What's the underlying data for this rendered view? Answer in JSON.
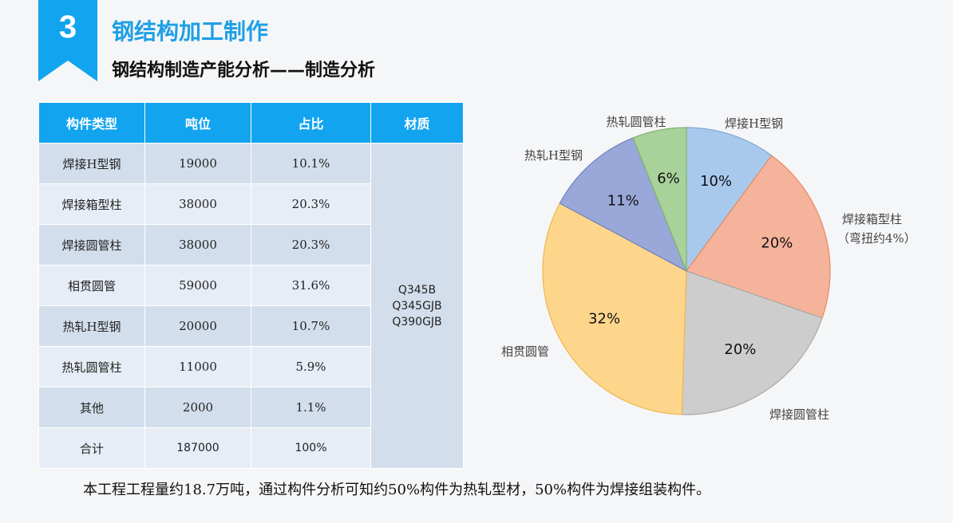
{
  "header": {
    "section_number": "3",
    "title": "钢结构加工制作",
    "subtitle": "钢结构制造产能分析——制造分析"
  },
  "table": {
    "headers": [
      "构件类型",
      "吨位",
      "占比",
      "材质"
    ],
    "rows": [
      {
        "type": "焊接H型钢",
        "tonnage": "19000",
        "share": "10.1%"
      },
      {
        "type": "焊接箱型柱",
        "tonnage": "38000",
        "share": "20.3%"
      },
      {
        "type": "焊接圆管柱",
        "tonnage": "38000",
        "share": "20.3%"
      },
      {
        "type": "相贯圆管",
        "tonnage": "59000",
        "share": "31.6%"
      },
      {
        "type": "热轧H型钢",
        "tonnage": "20000",
        "share": "10.7%"
      },
      {
        "type": "热轧圆管柱",
        "tonnage": "11000",
        "share": "5.9%"
      },
      {
        "type": "其他",
        "tonnage": "2000",
        "share": "1.1%"
      }
    ],
    "total": {
      "type": "合计",
      "tonnage": "187000",
      "share": "100%"
    },
    "materials": [
      "Q345B",
      "Q345GJB",
      "Q390GJB"
    ]
  },
  "chart_data": {
    "type": "pie",
    "start": "12 o'clock, clockwise",
    "slices": [
      {
        "label": "焊接H型钢",
        "value": 10,
        "display": "10%",
        "color": "#a9c9ec",
        "stroke": "#7fa9d8"
      },
      {
        "label": "焊接箱型柱",
        "sublabel": "（弯扭约4%）",
        "value": 20,
        "display": "20%",
        "color": "#f6b39b",
        "stroke": "#e8895f"
      },
      {
        "label": "焊接圆管柱",
        "value": 20,
        "display": "20%",
        "color": "#cdcdcd",
        "stroke": "#a9a9a9"
      },
      {
        "label": "相贯圆管",
        "value": 32,
        "display": "32%",
        "color": "#fdd68c",
        "stroke": "#f1b64a"
      },
      {
        "label": "热轧H型钢",
        "value": 11,
        "display": "11%",
        "color": "#99a8d8",
        "stroke": "#6e80c2"
      },
      {
        "label": "热轧圆管柱",
        "value": 6,
        "display": "6%",
        "color": "#a9d29a",
        "stroke": "#7fb36d"
      }
    ]
  },
  "footnote": "本工程工程量约18.7万吨，通过构件分析可知约50%构件为热轧型材，50%构件为焊接组装构件。",
  "colors": {
    "accent": "#12a4ef",
    "title": "#1ea0e6"
  }
}
